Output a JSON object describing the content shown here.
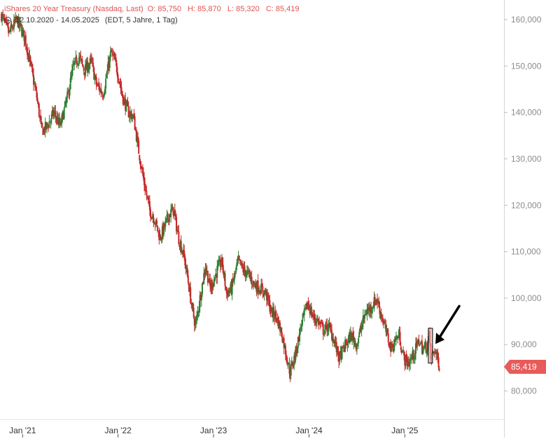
{
  "header": {
    "title": "iShares 20 Year Treasury (Nasdaq, Last)",
    "ohlc": {
      "open": "O: 85,750",
      "high": "H: 85,870",
      "low": "L: 85,320",
      "close": "C: 85,419"
    },
    "date_range": "12.10.2020 - 14.05.2025",
    "range_info": "(EDT, 5 Jahre, 1 Tag)"
  },
  "last_price_label": "85,419",
  "colors": {
    "up": "#2e7d32",
    "down": "#c62828",
    "accent": "#e85b5b",
    "highlight": "#f4b6b6",
    "arrow": "#000000"
  },
  "chart_data": {
    "type": "candlestick",
    "title": "iShares 20 Year Treasury (Nasdaq, Last)",
    "x_range": [
      "2020-10-12",
      "2025-05-14"
    ],
    "ylim": [
      70000,
      165000
    ],
    "y_ticks": [
      {
        "value": 160000,
        "label": "160,000"
      },
      {
        "value": 150000,
        "label": "150,000"
      },
      {
        "value": 140000,
        "label": "140,000"
      },
      {
        "value": 130000,
        "label": "130,000"
      },
      {
        "value": 120000,
        "label": "120,000"
      },
      {
        "value": 110000,
        "label": "110,000"
      },
      {
        "value": 100000,
        "label": "100,000"
      },
      {
        "value": 90000,
        "label": "90,000"
      },
      {
        "value": 80000,
        "label": "80,000"
      }
    ],
    "x_ticks": [
      {
        "date": "2021-01-01",
        "label": "Jan '21"
      },
      {
        "date": "2022-01-01",
        "label": "Jan '22"
      },
      {
        "date": "2023-01-01",
        "label": "Jan '23"
      },
      {
        "date": "2024-01-01",
        "label": "Jan '24"
      },
      {
        "date": "2025-01-01",
        "label": "Jan '25"
      }
    ],
    "price_path": [
      [
        "2020-10-12",
        161000
      ],
      [
        "2020-11-10",
        157000
      ],
      [
        "2020-12-10",
        160000
      ],
      [
        "2021-01-10",
        156000
      ],
      [
        "2021-02-01",
        150000
      ],
      [
        "2021-02-25",
        143000
      ],
      [
        "2021-03-15",
        136000
      ],
      [
        "2021-04-05",
        137000
      ],
      [
        "2021-05-01",
        140000
      ],
      [
        "2021-05-25",
        137000
      ],
      [
        "2021-06-20",
        143000
      ],
      [
        "2021-07-15",
        150000
      ],
      [
        "2021-08-05",
        152000
      ],
      [
        "2021-08-25",
        149000
      ],
      [
        "2021-09-20",
        151000
      ],
      [
        "2021-10-10",
        146000
      ],
      [
        "2021-11-05",
        144000
      ],
      [
        "2021-11-25",
        150000
      ],
      [
        "2021-12-05",
        153000
      ],
      [
        "2021-12-25",
        150000
      ],
      [
        "2022-01-20",
        143000
      ],
      [
        "2022-02-10",
        140000
      ],
      [
        "2022-03-01",
        139000
      ],
      [
        "2022-03-20",
        132000
      ],
      [
        "2022-04-10",
        125000
      ],
      [
        "2022-05-01",
        119000
      ],
      [
        "2022-05-20",
        117000
      ],
      [
        "2022-06-10",
        113000
      ],
      [
        "2022-06-25",
        115000
      ],
      [
        "2022-07-15",
        118000
      ],
      [
        "2022-08-01",
        119000
      ],
      [
        "2022-08-20",
        113000
      ],
      [
        "2022-09-10",
        109000
      ],
      [
        "2022-09-25",
        104000
      ],
      [
        "2022-10-10",
        98000
      ],
      [
        "2022-10-24",
        94000
      ],
      [
        "2022-11-10",
        100000
      ],
      [
        "2022-12-01",
        107000
      ],
      [
        "2022-12-20",
        102000
      ],
      [
        "2023-01-15",
        106000
      ],
      [
        "2023-02-01",
        108000
      ],
      [
        "2023-02-20",
        101000
      ],
      [
        "2023-03-10",
        102000
      ],
      [
        "2023-04-05",
        108000
      ],
      [
        "2023-04-25",
        106000
      ],
      [
        "2023-05-15",
        105000
      ],
      [
        "2023-06-05",
        103000
      ],
      [
        "2023-06-30",
        102000
      ],
      [
        "2023-07-20",
        101000
      ],
      [
        "2023-08-10",
        97000
      ],
      [
        "2023-08-30",
        96000
      ],
      [
        "2023-09-20",
        92000
      ],
      [
        "2023-10-05",
        88000
      ],
      [
        "2023-10-20",
        84000
      ],
      [
        "2023-11-10",
        88000
      ],
      [
        "2023-12-01",
        94000
      ],
      [
        "2023-12-27",
        99000
      ],
      [
        "2024-01-15",
        96000
      ],
      [
        "2024-02-05",
        95000
      ],
      [
        "2024-02-25",
        93000
      ],
      [
        "2024-03-15",
        94000
      ],
      [
        "2024-04-05",
        91000
      ],
      [
        "2024-04-25",
        87000
      ],
      [
        "2024-05-20",
        90000
      ],
      [
        "2024-06-10",
        92000
      ],
      [
        "2024-07-01",
        90000
      ],
      [
        "2024-07-20",
        94000
      ],
      [
        "2024-08-05",
        97000
      ],
      [
        "2024-08-25",
        98000
      ],
      [
        "2024-09-15",
        100000
      ],
      [
        "2024-10-05",
        96000
      ],
      [
        "2024-10-25",
        92000
      ],
      [
        "2024-11-10",
        89000
      ],
      [
        "2024-11-25",
        91000
      ],
      [
        "2024-12-10",
        92000
      ],
      [
        "2024-12-28",
        87000
      ],
      [
        "2025-01-15",
        86000
      ],
      [
        "2025-02-05",
        88000
      ],
      [
        "2025-02-25",
        91000
      ],
      [
        "2025-03-10",
        89000
      ],
      [
        "2025-03-25",
        89500
      ],
      [
        "2025-04-05",
        92000
      ],
      [
        "2025-04-10",
        87000
      ],
      [
        "2025-04-25",
        89000
      ],
      [
        "2025-05-14",
        85419
      ]
    ],
    "highlight": {
      "start": "2025-04-01",
      "end": "2025-04-12",
      "low": 86000,
      "high": 93500
    },
    "annotation": {
      "type": "arrow",
      "pointing_to": "highlight"
    },
    "last_value": 85419,
    "grid": false
  }
}
